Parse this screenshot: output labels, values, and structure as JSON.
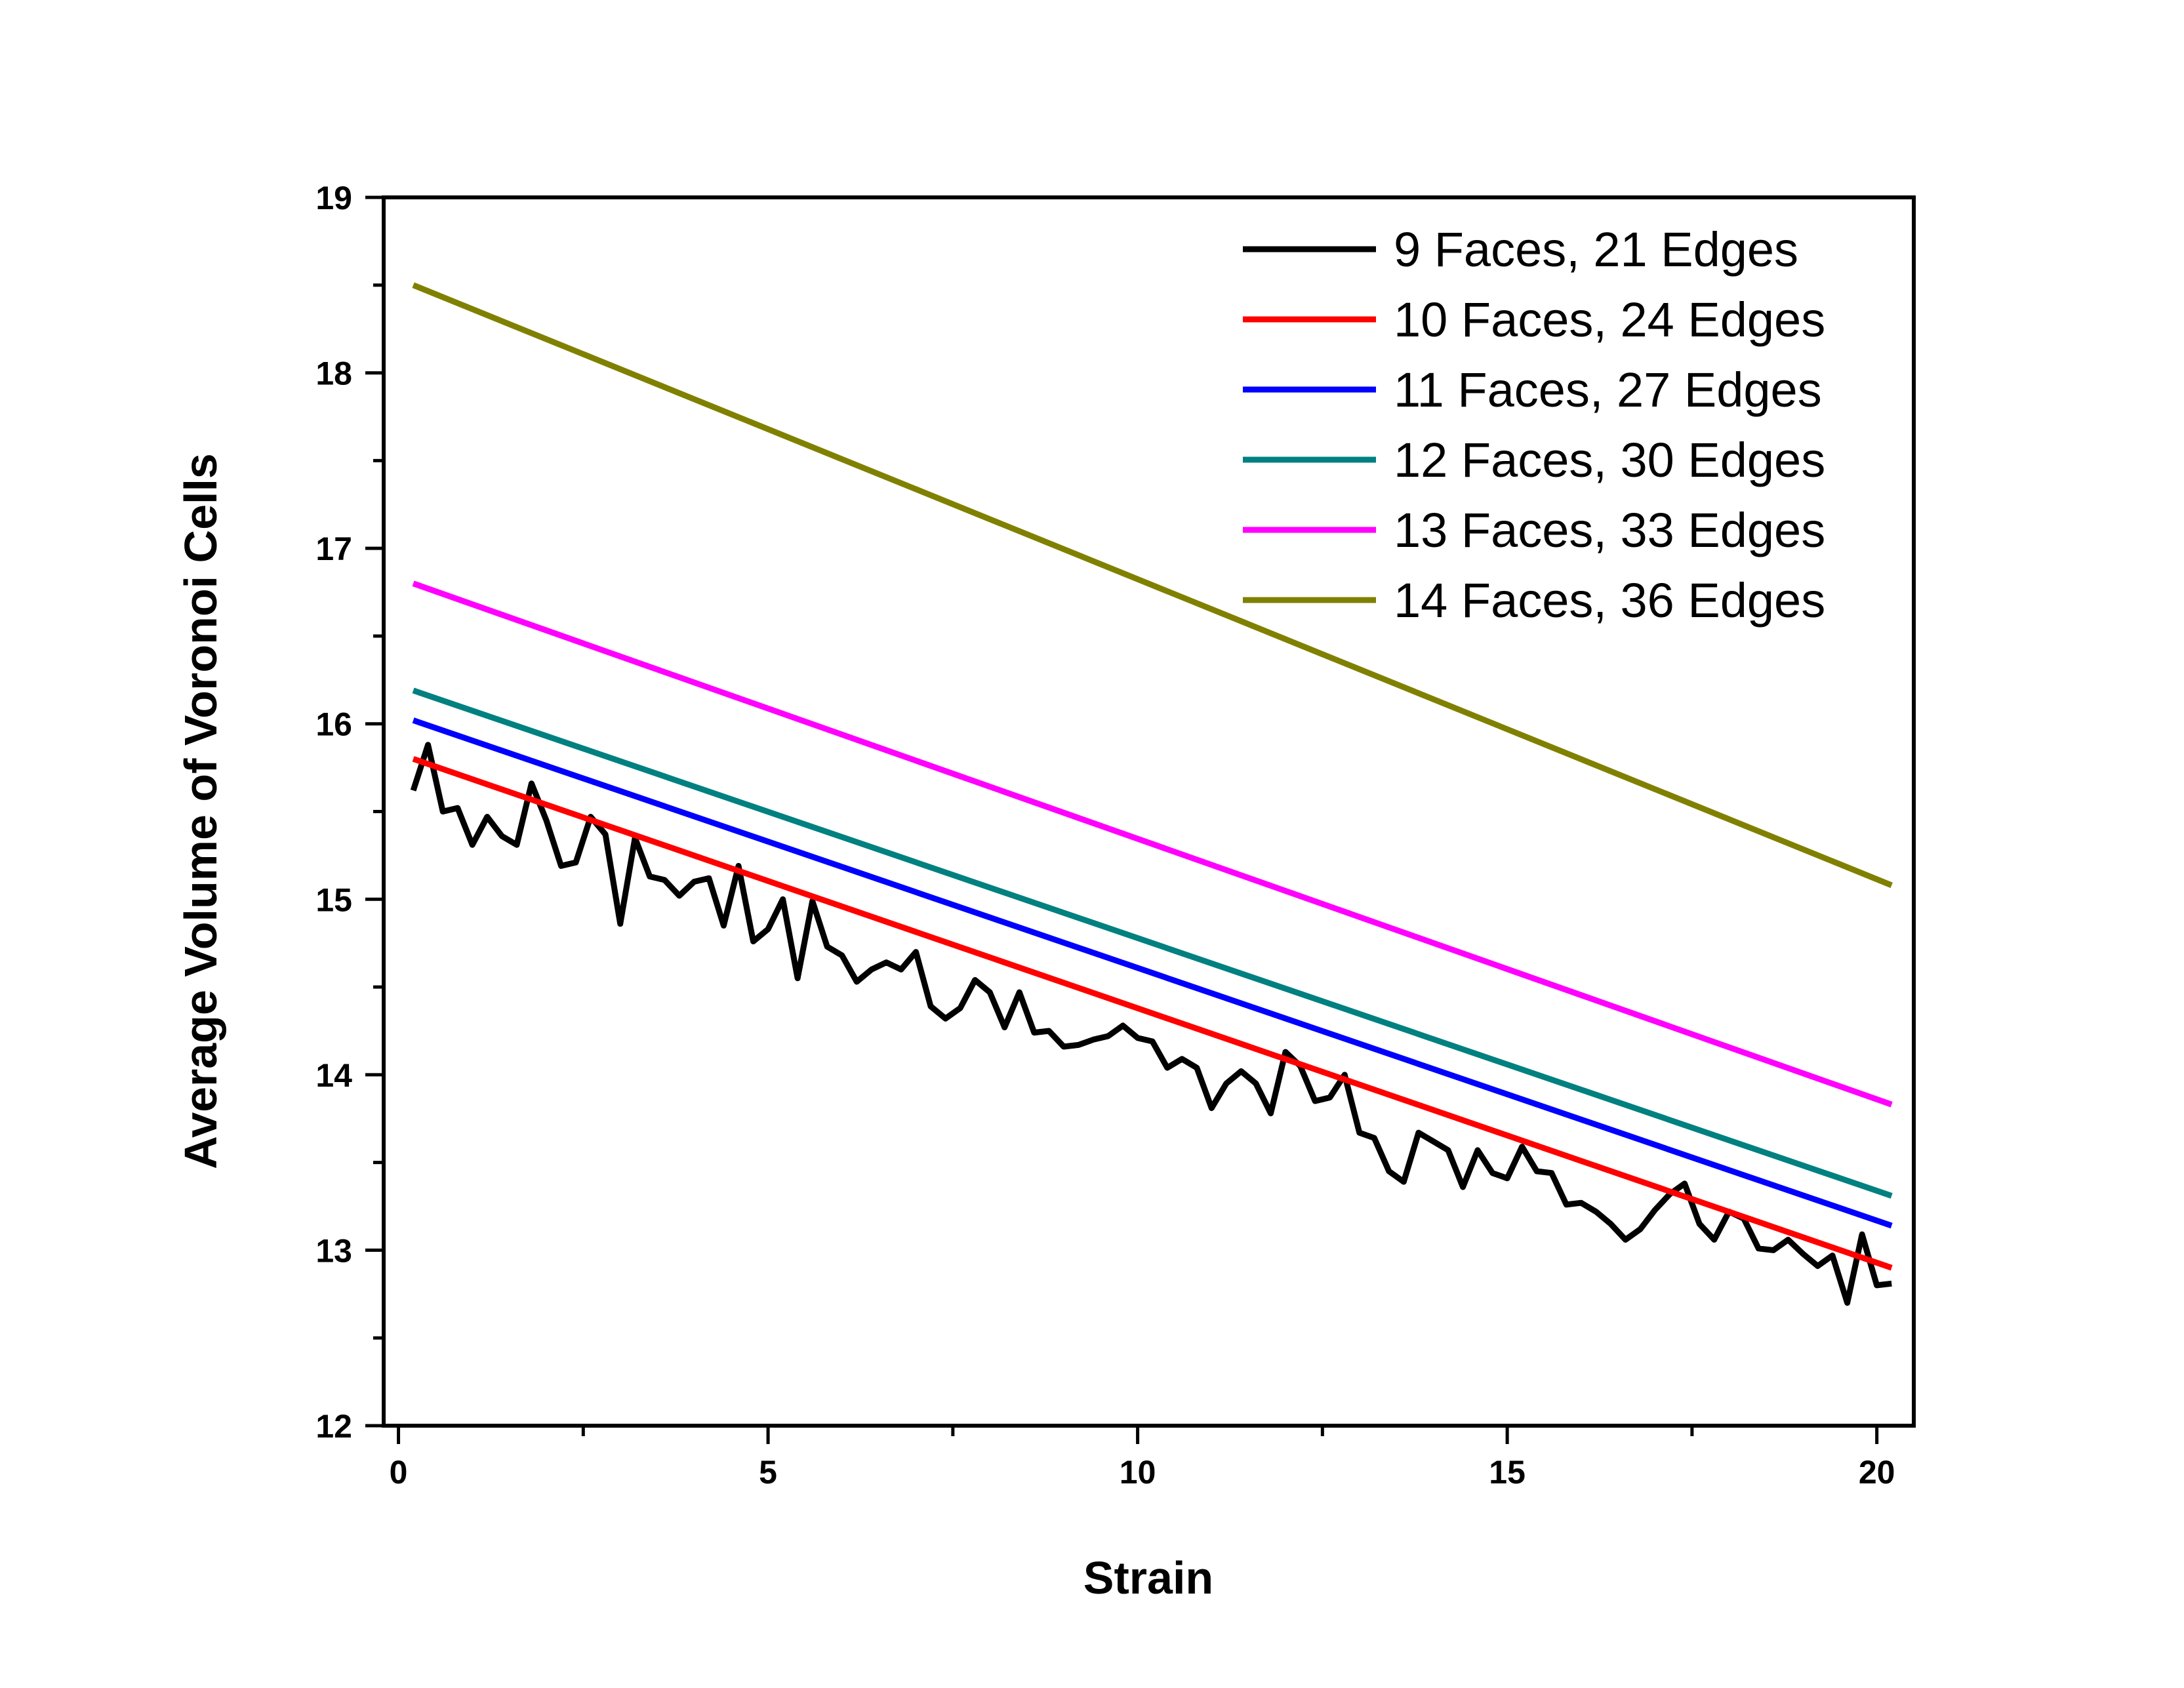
{
  "chart_data": {
    "type": "line",
    "title": "",
    "xlabel": "Strain",
    "ylabel": "Average Volume of Voronoi Cells",
    "xlim": [
      -0.2,
      20.5
    ],
    "ylim": [
      12,
      19
    ],
    "xticks": [
      0,
      5,
      10,
      15,
      20
    ],
    "yticks": [
      12,
      13,
      14,
      15,
      16,
      17,
      18,
      19
    ],
    "grid": false,
    "legend_position": "top-right",
    "series": [
      {
        "name": "9 Faces, 21 Edges",
        "color": "#000000",
        "x": [
          0.2,
          0.4,
          0.6,
          0.8,
          1.0,
          1.2,
          1.4,
          1.6,
          1.8,
          2.0,
          2.2,
          2.4,
          2.6,
          2.8,
          3.0,
          3.2,
          3.4,
          3.6,
          3.8,
          4.0,
          4.2,
          4.4,
          4.6,
          4.8,
          5.0,
          5.2,
          5.4,
          5.6,
          5.8,
          6.0,
          6.2,
          6.4,
          6.6,
          6.8,
          7.0,
          7.2,
          7.4,
          7.6,
          7.8,
          8.0,
          8.2,
          8.4,
          8.6,
          8.8,
          9.0,
          9.2,
          9.4,
          9.6,
          9.8,
          10.0,
          10.2,
          10.4,
          10.6,
          10.8,
          11.0,
          11.2,
          11.4,
          11.6,
          11.8,
          12.0,
          12.2,
          12.4,
          12.6,
          12.8,
          13.0,
          13.2,
          13.4,
          13.6,
          13.8,
          14.0,
          14.2,
          14.4,
          14.6,
          14.8,
          15.0,
          15.2,
          15.4,
          15.6,
          15.8,
          16.0,
          16.2,
          16.4,
          16.6,
          16.8,
          17.0,
          17.2,
          17.4,
          17.6,
          17.8,
          18.0,
          18.2,
          18.4,
          18.6,
          18.8,
          19.0,
          19.2,
          19.4,
          19.6,
          19.8,
          20.0,
          20.2
        ],
        "values": [
          15.62,
          15.88,
          15.5,
          15.52,
          15.31,
          15.47,
          15.36,
          15.31,
          15.66,
          15.45,
          15.19,
          15.21,
          15.47,
          15.37,
          14.86,
          15.35,
          15.13,
          15.11,
          15.02,
          15.1,
          15.12,
          14.85,
          15.19,
          14.76,
          14.83,
          15.0,
          14.55,
          14.99,
          14.73,
          14.68,
          14.53,
          14.6,
          14.64,
          14.6,
          14.7,
          14.39,
          14.32,
          14.38,
          14.54,
          14.47,
          14.27,
          14.47,
          14.24,
          14.25,
          14.16,
          14.17,
          14.2,
          14.22,
          14.28,
          14.21,
          14.19,
          14.04,
          14.09,
          14.04,
          13.81,
          13.95,
          14.02,
          13.95,
          13.78,
          14.13,
          14.05,
          13.85,
          13.87,
          14.0,
          13.67,
          13.64,
          13.45,
          13.39,
          13.67,
          13.62,
          13.57,
          13.36,
          13.57,
          13.44,
          13.41,
          13.59,
          13.45,
          13.44,
          13.26,
          13.27,
          13.22,
          13.15,
          13.06,
          13.12,
          13.23,
          13.32,
          13.38,
          13.15,
          13.06,
          13.22,
          13.18,
          13.01,
          13.0,
          13.06,
          12.98,
          12.91,
          12.97,
          12.7,
          13.09,
          12.8,
          12.81
        ]
      },
      {
        "name": "10 Faces, 24 Edges",
        "color": "#ff0000",
        "x": [
          0.2,
          20.2
        ],
        "values": [
          15.8,
          12.9
        ]
      },
      {
        "name": "11 Faces, 27 Edges",
        "color": "#0000ff",
        "x": [
          0.2,
          20.2
        ],
        "values": [
          16.02,
          13.14
        ]
      },
      {
        "name": "12 Faces, 30 Edges",
        "color": "#008080",
        "x": [
          0.2,
          20.2
        ],
        "values": [
          16.19,
          13.31
        ]
      },
      {
        "name": "13 Faces, 33 Edges",
        "color": "#ff00ff",
        "x": [
          0.2,
          20.2
        ],
        "values": [
          16.8,
          13.83
        ]
      },
      {
        "name": "14 Faces, 36 Edges",
        "color": "#808000",
        "x": [
          0.2,
          20.2
        ],
        "values": [
          18.5,
          15.08
        ]
      }
    ]
  }
}
